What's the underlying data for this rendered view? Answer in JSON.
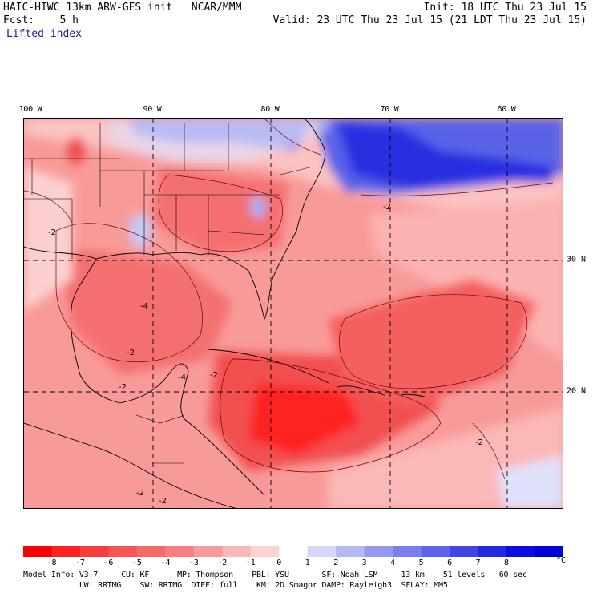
{
  "header": {
    "model_line": "HAIC-HIWC 13km ARW-GFS init   NCAR/MMM",
    "init_line": "Init: 18 UTC Thu 23 Jul 15",
    "fcst_line": "Fcst:    5 h",
    "valid_line": "Valid: 23 UTC Thu 23 Jul 15 (21 LDT Thu 23 Jul 15)",
    "field_name": "Lifted index"
  },
  "map": {
    "lon_labels": [
      "100 W",
      "90 W",
      "80 W",
      "70 W",
      "60 W"
    ],
    "lat_labels": [
      "30 N",
      "20 N"
    ],
    "contour_labels": [
      "-2",
      "-4",
      "-2",
      "-4",
      "-2",
      "-2",
      "-2",
      "-2",
      "-2",
      "-2"
    ],
    "colors": {
      "strong_unstable": "#ff1a1a",
      "unstable": "#f55a5a",
      "weak_unstable": "#fba0a0",
      "neutral": "#fde5e5",
      "stable_weak": "#c9ccf5",
      "stable": "#4b55e6",
      "stable_strong": "#1f22e0"
    }
  },
  "colorbar": {
    "unit": "°C",
    "tick_labels": [
      "-8",
      "-7",
      "-6",
      "-5",
      "-4",
      "-3",
      "-2",
      "-1",
      "0",
      "1",
      "2",
      "3",
      "4",
      "5",
      "6",
      "7",
      "8"
    ],
    "colors": [
      "#ff0000",
      "#ff2020",
      "#fb3c3c",
      "#f75555",
      "#f56a6a",
      "#f77f7f",
      "#f99b9b",
      "#fbb6b6",
      "#fdd2d2",
      "#ffffff",
      "#d5d7fa",
      "#b5b8f5",
      "#9699f0",
      "#7a7eee",
      "#5d62ea",
      "#4045e6",
      "#2328e2",
      "#0a0fde",
      "#0000d8"
    ]
  },
  "model_info": {
    "line1": "Model Info: V3.7     CU: KF      MP: Thompson    PBL: YSU       SF: Noah LSM     13 km    51 levels   60 sec",
    "line2": "            LW: RRTMG    SW: RRTMG  DIFF: full    KM: 2D Smagor DAMP: Rayleigh3  SFLAY: MM5"
  }
}
